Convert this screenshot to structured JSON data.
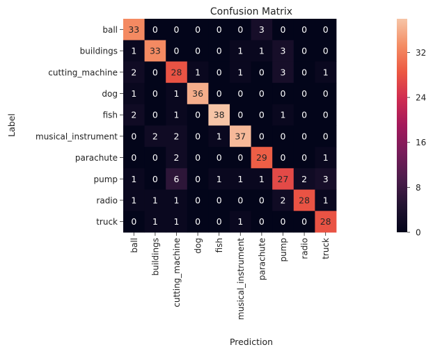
{
  "chart_data": {
    "type": "heatmap",
    "title": "Confusion Matrix",
    "xlabel": "Prediction",
    "ylabel": "Label",
    "rows": [
      "ball",
      "buildings",
      "cutting_machine",
      "dog",
      "fish",
      "musical_instrument",
      "parachute",
      "pump",
      "radio",
      "truck"
    ],
    "columns": [
      "ball",
      "buildings",
      "cutting_machine",
      "dog",
      "fish",
      "musical_instrument",
      "parachute",
      "pump",
      "radio",
      "truck"
    ],
    "values": [
      [
        33,
        0,
        0,
        0,
        0,
        0,
        3,
        0,
        0,
        0
      ],
      [
        1,
        33,
        0,
        0,
        0,
        1,
        1,
        3,
        0,
        0
      ],
      [
        2,
        0,
        28,
        1,
        0,
        1,
        0,
        3,
        0,
        1
      ],
      [
        1,
        0,
        1,
        36,
        0,
        0,
        0,
        0,
        0,
        0
      ],
      [
        2,
        0,
        1,
        0,
        38,
        0,
        0,
        1,
        0,
        0
      ],
      [
        0,
        2,
        2,
        0,
        1,
        37,
        0,
        0,
        0,
        0
      ],
      [
        0,
        0,
        2,
        0,
        0,
        0,
        29,
        0,
        0,
        1
      ],
      [
        1,
        0,
        6,
        0,
        1,
        1,
        1,
        27,
        2,
        3
      ],
      [
        1,
        1,
        1,
        0,
        0,
        0,
        0,
        2,
        28,
        1
      ],
      [
        0,
        1,
        1,
        0,
        0,
        1,
        0,
        0,
        0,
        28
      ]
    ],
    "colorbar": {
      "min": 0,
      "max": 38,
      "ticks": [
        0,
        8,
        16,
        24,
        32
      ],
      "colormap": "rocket"
    }
  }
}
